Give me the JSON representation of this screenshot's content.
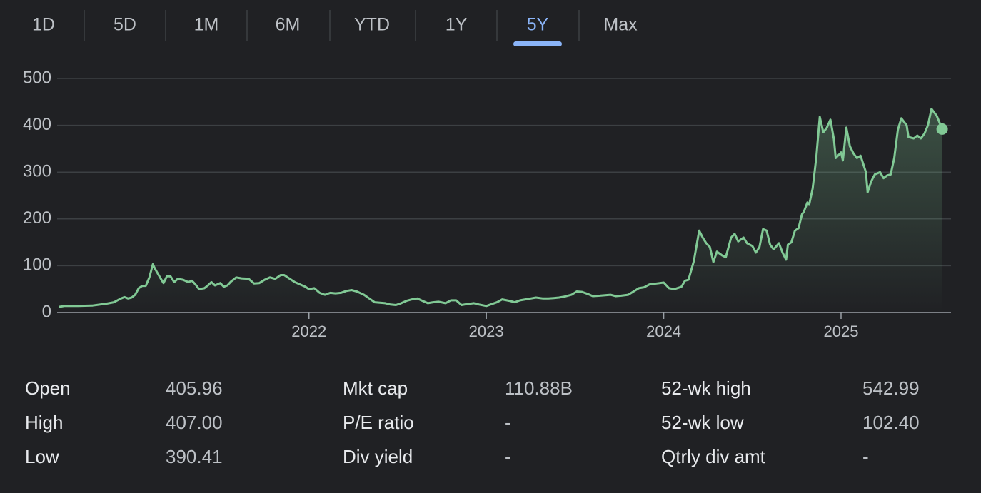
{
  "tabs": [
    {
      "label": "1D",
      "selected": false
    },
    {
      "label": "5D",
      "selected": false
    },
    {
      "label": "1M",
      "selected": false
    },
    {
      "label": "6M",
      "selected": false
    },
    {
      "label": "YTD",
      "selected": false
    },
    {
      "label": "1Y",
      "selected": false
    },
    {
      "label": "5Y",
      "selected": true
    },
    {
      "label": "Max",
      "selected": false
    }
  ],
  "chart_data": {
    "type": "line",
    "color": "#81c995",
    "grid": true,
    "ylim": [
      0,
      500
    ],
    "yticks": [
      0,
      100,
      200,
      300,
      400,
      500
    ],
    "xlim": [
      2020.58,
      2025.62
    ],
    "xticks": [
      2022,
      2023,
      2024,
      2025
    ],
    "x": [
      2020.59,
      2020.62,
      2020.7,
      2020.78,
      2020.86,
      2020.9,
      2020.94,
      2020.96,
      2020.98,
      2021.0,
      2021.02,
      2021.04,
      2021.06,
      2021.08,
      2021.1,
      2021.12,
      2021.13,
      2021.16,
      2021.18,
      2021.2,
      2021.22,
      2021.24,
      2021.26,
      2021.29,
      2021.32,
      2021.34,
      2021.36,
      2021.38,
      2021.41,
      2021.43,
      2021.45,
      2021.47,
      2021.5,
      2021.52,
      2021.54,
      2021.56,
      2021.59,
      2021.62,
      2021.66,
      2021.69,
      2021.72,
      2021.75,
      2021.78,
      2021.81,
      2021.84,
      2021.86,
      2021.9,
      2021.92,
      2021.95,
      2021.98,
      2022.0,
      2022.03,
      2022.06,
      2022.09,
      2022.12,
      2022.15,
      2022.18,
      2022.21,
      2022.24,
      2022.27,
      2022.31,
      2022.34,
      2022.37,
      2022.4,
      2022.43,
      2022.46,
      2022.49,
      2022.52,
      2022.55,
      2022.58,
      2022.61,
      2022.64,
      2022.67,
      2022.7,
      2022.73,
      2022.77,
      2022.8,
      2022.83,
      2022.86,
      2022.89,
      2022.93,
      2022.96,
      2023.0,
      2023.03,
      2023.06,
      2023.09,
      2023.13,
      2023.16,
      2023.19,
      2023.22,
      2023.25,
      2023.28,
      2023.32,
      2023.35,
      2023.38,
      2023.41,
      2023.44,
      2023.48,
      2023.51,
      2023.54,
      2023.57,
      2023.6,
      2023.64,
      2023.67,
      2023.7,
      2023.73,
      2023.76,
      2023.8,
      2023.83,
      2023.86,
      2023.89,
      2023.92,
      2023.96,
      2024.0,
      2024.03,
      2024.06,
      2024.1,
      2024.12,
      2024.14,
      2024.17,
      2024.2,
      2024.22,
      2024.24,
      2024.26,
      2024.28,
      2024.3,
      2024.33,
      2024.35,
      2024.38,
      2024.4,
      2024.42,
      2024.45,
      2024.47,
      2024.5,
      2024.52,
      2024.54,
      2024.56,
      2024.58,
      2024.6,
      2024.62,
      2024.65,
      2024.67,
      2024.69,
      2024.7,
      2024.72,
      2024.74,
      2024.76,
      2024.78,
      2024.79,
      2024.81,
      2024.82,
      2024.84,
      2024.86,
      2024.88,
      2024.9,
      2024.92,
      2024.94,
      2024.96,
      2024.97,
      2025.0,
      2025.01,
      2025.03,
      2025.05,
      2025.07,
      2025.09,
      2025.11,
      2025.14,
      2025.15,
      2025.17,
      2025.19,
      2025.22,
      2025.24,
      2025.26,
      2025.28,
      2025.3,
      2025.32,
      2025.34,
      2025.37,
      2025.38,
      2025.41,
      2025.43,
      2025.45,
      2025.47,
      2025.49,
      2025.51,
      2025.54,
      2025.57
    ],
    "values": [
      12,
      14,
      14,
      15,
      19,
      22,
      30,
      33,
      30,
      32,
      38,
      52,
      57,
      57,
      75,
      103,
      95,
      75,
      63,
      78,
      77,
      65,
      72,
      70,
      65,
      68,
      60,
      50,
      52,
      58,
      65,
      58,
      63,
      55,
      58,
      66,
      75,
      73,
      72,
      62,
      63,
      70,
      75,
      72,
      80,
      80,
      70,
      65,
      60,
      55,
      50,
      52,
      42,
      38,
      42,
      41,
      42,
      46,
      48,
      45,
      38,
      30,
      22,
      21,
      20,
      17,
      16,
      20,
      25,
      28,
      30,
      25,
      20,
      22,
      23,
      20,
      26,
      26,
      16,
      18,
      20,
      17,
      14,
      18,
      22,
      28,
      25,
      22,
      26,
      28,
      30,
      32,
      30,
      30,
      31,
      32,
      34,
      38,
      45,
      44,
      40,
      35,
      36,
      37,
      38,
      35,
      36,
      38,
      45,
      52,
      54,
      60,
      62,
      64,
      52,
      50,
      55,
      68,
      70,
      110,
      175,
      160,
      148,
      140,
      108,
      130,
      122,
      118,
      160,
      168,
      152,
      160,
      148,
      142,
      128,
      140,
      178,
      175,
      145,
      135,
      148,
      128,
      113,
      145,
      150,
      175,
      180,
      210,
      215,
      235,
      230,
      265,
      330,
      418,
      385,
      395,
      412,
      370,
      330,
      342,
      325,
      395,
      355,
      340,
      330,
      335,
      300,
      257,
      280,
      295,
      300,
      287,
      293,
      295,
      330,
      390,
      415,
      400,
      375,
      372,
      378,
      372,
      382,
      400,
      435,
      420,
      392
    ]
  },
  "stats": [
    [
      {
        "label": "Open",
        "value": "405.96"
      },
      {
        "label": "High",
        "value": "407.00"
      },
      {
        "label": "Low",
        "value": "390.41"
      }
    ],
    [
      {
        "label": "Mkt cap",
        "value": "110.88B"
      },
      {
        "label": "P/E ratio",
        "value": "-"
      },
      {
        "label": "Div yield",
        "value": "-"
      }
    ],
    [
      {
        "label": "52-wk high",
        "value": "542.99"
      },
      {
        "label": "52-wk low",
        "value": "102.40"
      },
      {
        "label": "Qtrly div amt",
        "value": "-"
      }
    ]
  ]
}
